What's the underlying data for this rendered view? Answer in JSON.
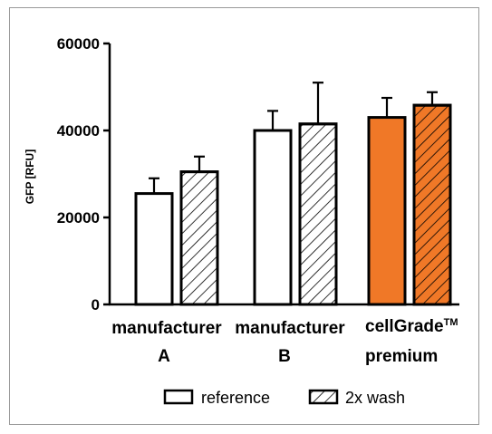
{
  "chart_data": {
    "type": "bar",
    "ylabel": "GFP [RFU]",
    "ylim": [
      0,
      60000
    ],
    "yticks": [
      "0",
      "20000",
      "40000",
      "60000"
    ],
    "categories": [
      {
        "line1": "manufacturer",
        "line2": "A",
        "tm": ""
      },
      {
        "line1": "manufacturer",
        "line2": "B",
        "tm": ""
      },
      {
        "line1": "cellGrade",
        "line2": "premium",
        "tm": "TM"
      }
    ],
    "series": [
      {
        "name": "reference",
        "values": [
          25500,
          40000,
          43000
        ],
        "errors": [
          3500,
          4500,
          4500
        ]
      },
      {
        "name": "2x wash",
        "values": [
          30500,
          41500,
          45800
        ],
        "errors": [
          3500,
          9500,
          3000
        ]
      }
    ],
    "highlight_category": 2,
    "colors": {
      "highlight": "#f07827",
      "default": "#ffffff",
      "stroke": "#000000"
    },
    "legend": {
      "position": "bottom-center"
    },
    "grid": false
  }
}
